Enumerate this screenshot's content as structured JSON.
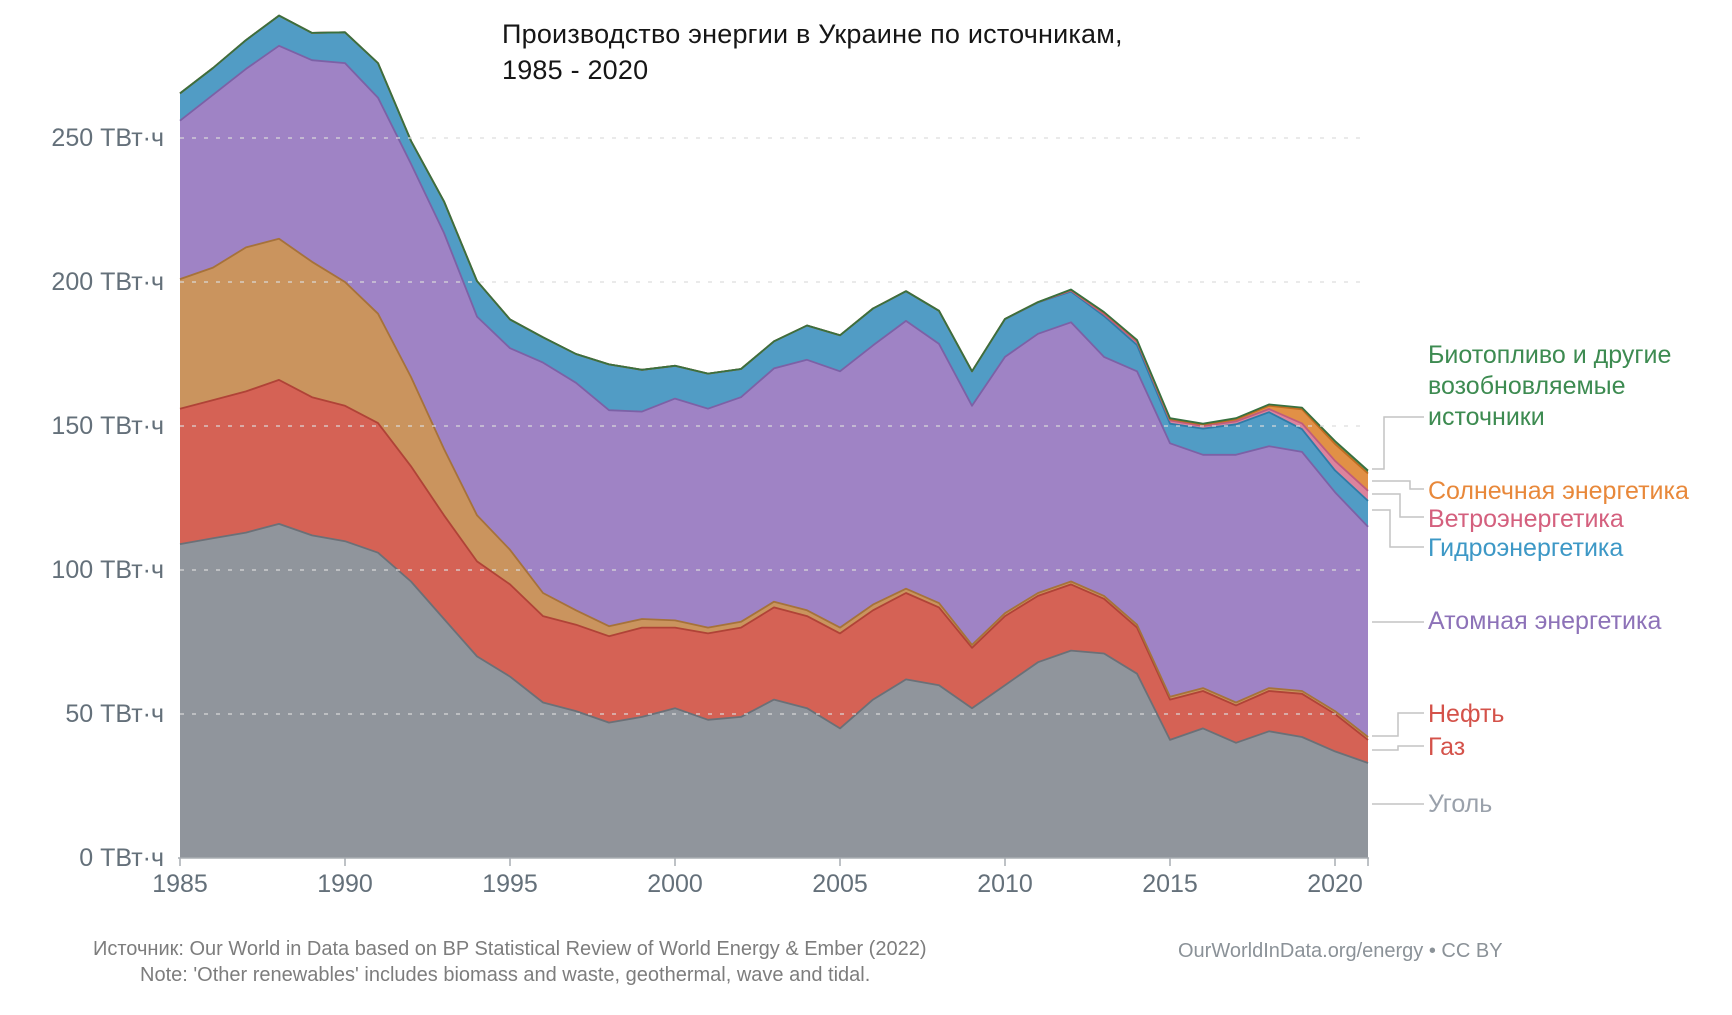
{
  "title": {
    "line1": "Производство энергии в Украине по источникам,",
    "line2": "1985 - 2020"
  },
  "y_axis": {
    "ticks": [
      {
        "value": 0,
        "label": "0 ТВт·ч"
      },
      {
        "value": 50,
        "label": "50 ТВт·ч"
      },
      {
        "value": 100,
        "label": "100 ТВт·ч"
      },
      {
        "value": 150,
        "label": "150 ТВт·ч"
      },
      {
        "value": 200,
        "label": "200 ТВт·ч"
      },
      {
        "value": 250,
        "label": "250 ТВт·ч"
      }
    ]
  },
  "x_axis": {
    "ticks": [
      "1985",
      "1990",
      "1995",
      "2000",
      "2005",
      "2010",
      "2015",
      "2020"
    ]
  },
  "legend": {
    "items": [
      {
        "id": "bio",
        "label": "Биотопливо и другие возобновляемые источники",
        "color": "#3D8B51"
      },
      {
        "id": "solar",
        "label": "Солнечная энергетика",
        "color": "#E8883A"
      },
      {
        "id": "wind",
        "label": "Ветроэнергетика",
        "color": "#D4607E"
      },
      {
        "id": "hydro",
        "label": "Гидроэнергетика",
        "color": "#3D98C6"
      },
      {
        "id": "nuclear",
        "label": "Атомная энергетика",
        "color": "#8D72B8"
      },
      {
        "id": "oil",
        "label": "Нефть",
        "color": "#D4524A"
      },
      {
        "id": "gas",
        "label": "Газ",
        "color": "#D4524A"
      },
      {
        "id": "coal",
        "label": "Уголь",
        "color": "#9AA1AB"
      }
    ]
  },
  "footer": {
    "source": "Источник:  Our World in Data based on BP Statistical Review of World Energy & Ember (2022)",
    "note": "Note: 'Other renewables' includes biomass and waste, geothermal, wave and tidal.",
    "attribution": "OurWorldInData.org/energy • CC BY"
  },
  "colors": {
    "background": "#ffffff",
    "axis_text": "#64707a",
    "axis_line": "#a8adb2",
    "gridline": "#dcdcdc",
    "connector": "#c4c4c4",
    "title_text": "#161616"
  },
  "chart_data": {
    "type": "area",
    "stacked": true,
    "title": "Производство энергии в Украине по источникам, 1985 - 2020",
    "unit": "ТВт·ч",
    "ylabel": "ТВт·ч",
    "ylim": [
      0,
      250
    ],
    "x_range": [
      1985,
      2021
    ],
    "grid": "horizontal-dashed",
    "legend_position": "right",
    "x": [
      1985,
      1986,
      1987,
      1988,
      1989,
      1990,
      1991,
      1992,
      1993,
      1994,
      1995,
      1996,
      1997,
      1998,
      1999,
      2000,
      2001,
      2002,
      2003,
      2004,
      2005,
      2006,
      2007,
      2008,
      2009,
      2010,
      2011,
      2012,
      2013,
      2014,
      2015,
      2016,
      2017,
      2018,
      2019,
      2020,
      2021
    ],
    "series": [
      {
        "id": "coal",
        "name": "Уголь",
        "fill": "#8B9198",
        "stroke": "#6b7077",
        "values": [
          109,
          111,
          113,
          116,
          112,
          110,
          106,
          96,
          83,
          70,
          63,
          54,
          51,
          47,
          49,
          52,
          48,
          49,
          55,
          52,
          45,
          55,
          62,
          60,
          52,
          60,
          68,
          72,
          71,
          64,
          41,
          45,
          40,
          44,
          42,
          37,
          33
        ]
      },
      {
        "id": "gas",
        "name": "Газ",
        "fill": "#D35C4E",
        "stroke": "#b04337",
        "values": [
          47,
          48,
          49,
          50,
          48,
          47,
          45,
          40,
          36,
          33,
          32,
          30,
          30,
          30,
          31,
          28,
          30,
          31,
          32,
          32,
          33,
          31,
          30,
          27,
          21,
          24,
          23,
          23,
          19,
          16,
          14,
          13,
          13,
          14,
          15,
          13,
          8
        ]
      },
      {
        "id": "oil",
        "name": "Нефть",
        "fill": "#C89057",
        "stroke": "#a6723a",
        "values": [
          45,
          46,
          50,
          49,
          47,
          43,
          38,
          31,
          23,
          16,
          12,
          8,
          5,
          3.5,
          3,
          2.5,
          2,
          2,
          2,
          2,
          2,
          2,
          1.5,
          1.5,
          1,
          1,
          1,
          1,
          1,
          1,
          1,
          1,
          1,
          1,
          1,
          1,
          1
        ]
      },
      {
        "id": "nuclear",
        "name": "Атомная энергетика",
        "fill": "#9B7EC3",
        "stroke": "#7c61a6",
        "values": [
          55,
          60,
          62,
          67,
          70,
          76,
          75,
          74,
          75,
          69,
          70,
          80,
          79,
          75,
          72,
          77,
          76,
          78,
          81,
          87,
          89,
          90,
          93,
          90,
          83,
          89,
          90,
          90,
          83,
          88,
          88,
          81,
          86,
          84,
          83,
          76,
          73
        ]
      },
      {
        "id": "hydro",
        "name": "Гидроэнергетика",
        "fill": "#4A98C3",
        "stroke": "#2f7ba6",
        "values": [
          9.5,
          9.3,
          10,
          10.5,
          9.5,
          10.7,
          12,
          8,
          11,
          12.3,
          10,
          8.8,
          10,
          15.9,
          14.5,
          11.4,
          12.2,
          9.8,
          9.4,
          11.9,
          12.5,
          12.8,
          10.3,
          11.5,
          12,
          13.1,
          10.9,
          10.7,
          14.2,
          9.1,
          6.8,
          9.1,
          10.6,
          11.8,
          7.9,
          7.6,
          9
        ]
      },
      {
        "id": "wind",
        "name": "Ветроэнергетика",
        "fill": "#DB7E99",
        "stroke": "#c05c7c",
        "values": [
          0,
          0,
          0,
          0,
          0,
          0,
          0,
          0,
          0,
          0,
          0,
          0,
          0,
          0,
          0,
          0,
          0,
          0,
          0,
          0,
          0,
          0,
          0,
          0,
          0,
          0.1,
          0.1,
          0.3,
          0.6,
          1.1,
          1.1,
          0.9,
          1.0,
          1.1,
          2.0,
          3.3,
          3.5
        ]
      },
      {
        "id": "solar",
        "name": "Солнечная энергетика",
        "fill": "#E08B3E",
        "stroke": "#bf6d22",
        "values": [
          0,
          0,
          0,
          0,
          0,
          0,
          0,
          0,
          0,
          0,
          0,
          0,
          0,
          0,
          0,
          0,
          0,
          0,
          0,
          0,
          0,
          0,
          0,
          0,
          0,
          0,
          0.03,
          0.3,
          0.6,
          0.5,
          0.5,
          0.5,
          0.7,
          1.1,
          4.9,
          5.9,
          6.0
        ]
      },
      {
        "id": "bio",
        "name": "Биотопливо и другие возобновляемые источники",
        "fill": "#4C8B52",
        "stroke": "#38703F",
        "values": [
          0,
          0,
          0,
          0,
          0,
          0,
          0,
          0,
          0,
          0,
          0,
          0,
          0,
          0,
          0,
          0,
          0,
          0,
          0,
          0,
          0,
          0,
          0,
          0,
          0,
          0,
          0,
          0.1,
          0.2,
          0.2,
          0.3,
          0.3,
          0.4,
          0.5,
          0.6,
          1.0,
          1.0
        ]
      }
    ]
  }
}
